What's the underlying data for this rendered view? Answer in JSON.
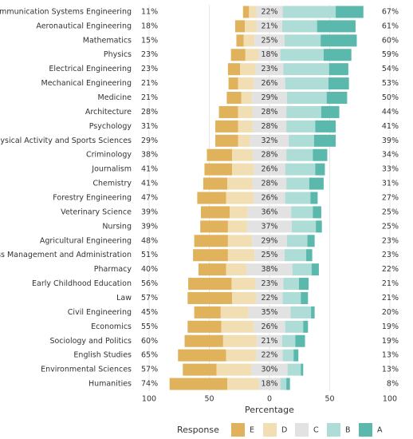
{
  "chart_data": {
    "type": "diverging_bar",
    "categories": [
      "Telecommunication Systems Engineering",
      "Aeronautical Engineering",
      "Mathematics",
      "Physics",
      "Electrical Engineering",
      "Mechanical Engineering",
      "Medicine",
      "Architecture",
      "Psychology",
      "Physical Activity and Sports Sciences",
      "Criminology",
      "Journalism",
      "Chemistry",
      "Forestry Engineering",
      "Veterinary Science",
      "Nursing",
      "Agricultural Engineering",
      "Business Management and Administration",
      "Pharmacy",
      "Early Childhood Education",
      "Law",
      "Civil Engineering",
      "Economics",
      "Sociology and Politics",
      "English Studies",
      "Environmental Sciences",
      "Humanities"
    ],
    "series": [
      {
        "name": "E",
        "color": "#dfb25b",
        "values": [
          5,
          8,
          6,
          12,
          10,
          8,
          12,
          16,
          19,
          19,
          21,
          23,
          20,
          24,
          24,
          23,
          28,
          29,
          23,
          36,
          37,
          22,
          28,
          32,
          40,
          28,
          48
        ]
      },
      {
        "name": "D",
        "color": "#f1deb2",
        "values": [
          6,
          10,
          9,
          11,
          13,
          13,
          9,
          12,
          12,
          10,
          17,
          18,
          21,
          23,
          15,
          16,
          20,
          22,
          17,
          20,
          20,
          23,
          27,
          28,
          25,
          29,
          26
        ]
      },
      {
        "name": "C",
        "color": "#e2e2e2",
        "values": [
          22,
          21,
          25,
          18,
          23,
          26,
          29,
          28,
          28,
          32,
          28,
          26,
          28,
          26,
          36,
          37,
          29,
          25,
          38,
          23,
          22,
          35,
          26,
          21,
          22,
          30,
          18
        ],
        "value_labels": [
          "22%",
          "21%",
          "25%",
          "18%",
          "23%",
          "26%",
          "29%",
          "28%",
          "28%",
          "32%",
          "28%",
          "26%",
          "28%",
          "26%",
          "36%",
          "37%",
          "29%",
          "25%",
          "38%",
          "23%",
          "22%",
          "35%",
          "26%",
          "21%",
          "22%",
          "30%",
          "18%"
        ]
      },
      {
        "name": "B",
        "color": "#aedcd7",
        "values": [
          44,
          29,
          30,
          36,
          38,
          36,
          33,
          29,
          24,
          21,
          22,
          25,
          19,
          21,
          18,
          20,
          17,
          18,
          16,
          13,
          15,
          17,
          15,
          11,
          9,
          11,
          5
        ]
      },
      {
        "name": "A",
        "color": "#5ab8ad",
        "values": [
          23,
          32,
          30,
          23,
          16,
          17,
          17,
          15,
          17,
          18,
          12,
          8,
          12,
          6,
          7,
          5,
          6,
          5,
          6,
          8,
          6,
          3,
          4,
          8,
          4,
          2,
          3
        ]
      }
    ],
    "left_labels": [
      "11%",
      "18%",
      "15%",
      "23%",
      "23%",
      "21%",
      "21%",
      "28%",
      "31%",
      "29%",
      "38%",
      "41%",
      "41%",
      "47%",
      "39%",
      "39%",
      "48%",
      "51%",
      "40%",
      "56%",
      "57%",
      "45%",
      "55%",
      "60%",
      "65%",
      "57%",
      "74%"
    ],
    "right_labels": [
      "67%",
      "61%",
      "60%",
      "59%",
      "54%",
      "53%",
      "50%",
      "44%",
      "41%",
      "39%",
      "34%",
      "33%",
      "31%",
      "27%",
      "25%",
      "25%",
      "23%",
      "23%",
      "22%",
      "21%",
      "21%",
      "20%",
      "19%",
      "19%",
      "13%",
      "13%",
      "8%"
    ],
    "xlim": [
      -100,
      100
    ],
    "xticks": [
      {
        "value": -100,
        "label": "100"
      },
      {
        "value": -50,
        "label": "50"
      },
      0,
      50,
      100
    ],
    "xlabel": "Percentage",
    "legend_title": "Response",
    "grid": true
  }
}
